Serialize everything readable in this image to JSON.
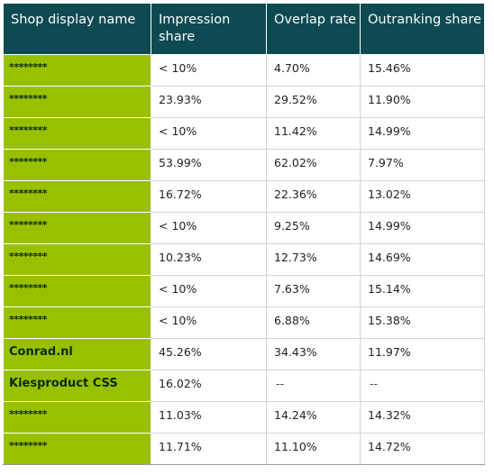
{
  "table": {
    "headers": [
      "Shop display name",
      "Impression share",
      "Overlap rate",
      "Outranking share"
    ],
    "rows": [
      {
        "shop": "********",
        "impression_share": "< 10%",
        "overlap_rate": "4.70%",
        "outranking_share": "15.46%"
      },
      {
        "shop": "********",
        "impression_share": "23.93%",
        "overlap_rate": "29.52%",
        "outranking_share": "11.90%"
      },
      {
        "shop": "********",
        "impression_share": "< 10%",
        "overlap_rate": "11.42%",
        "outranking_share": "14.99%"
      },
      {
        "shop": "********",
        "impression_share": "53.99%",
        "overlap_rate": "62.02%",
        "outranking_share": "7.97%"
      },
      {
        "shop": "********",
        "impression_share": "16.72%",
        "overlap_rate": "22.36%",
        "outranking_share": "13.02%"
      },
      {
        "shop": "********",
        "impression_share": "< 10%",
        "overlap_rate": "9.25%",
        "outranking_share": "14.99%"
      },
      {
        "shop": "********",
        "impression_share": "10.23%",
        "overlap_rate": "12.73%",
        "outranking_share": "14.69%"
      },
      {
        "shop": "********",
        "impression_share": "< 10%",
        "overlap_rate": "7.63%",
        "outranking_share": "15.14%"
      },
      {
        "shop": "********",
        "impression_share": "< 10%",
        "overlap_rate": "6.88%",
        "outranking_share": "15.38%"
      },
      {
        "shop": "Conrad.nl",
        "impression_share": "45.26%",
        "overlap_rate": "34.43%",
        "outranking_share": "11.97%"
      },
      {
        "shop": "Kiesproduct CSS",
        "impression_share": "16.02%",
        "overlap_rate": "--",
        "outranking_share": "--"
      },
      {
        "shop": "********",
        "impression_share": "11.03%",
        "overlap_rate": "14.24%",
        "outranking_share": "14.32%"
      },
      {
        "shop": "********",
        "impression_share": "11.71%",
        "overlap_rate": "11.10%",
        "outranking_share": "14.72%"
      }
    ]
  },
  "colors": {
    "header_bg": "#0e4a52",
    "header_text": "#ffffff",
    "name_cell_bg": "#99c000",
    "name_cell_text": "#0b2a10",
    "cell_text": "#222222"
  }
}
